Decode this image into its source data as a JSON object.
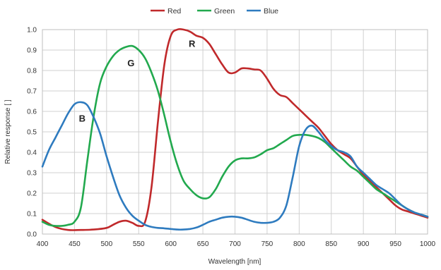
{
  "chart_data": {
    "type": "line",
    "xlabel": "Wavelength [nm]",
    "ylabel": "Relative response [ ]",
    "xlim": [
      400,
      1000
    ],
    "ylim": [
      0,
      1.0
    ],
    "x_ticks": [
      "400",
      "450",
      "500",
      "550",
      "600",
      "650",
      "700",
      "750",
      "800",
      "850",
      "900",
      "950",
      "1000"
    ],
    "y_ticks": [
      "0.0",
      "0.1",
      "0.2",
      "0.3",
      "0.4",
      "0.5",
      "0.6",
      "0.7",
      "0.8",
      "0.9",
      "1.0"
    ],
    "grid": true,
    "legend_position": "top",
    "series": [
      {
        "name": "Red",
        "color": "#c0292b",
        "x": [
          400,
          420,
          440,
          460,
          480,
          500,
          510,
          520,
          530,
          540,
          550,
          560,
          570,
          580,
          590,
          600,
          610,
          620,
          630,
          640,
          650,
          660,
          670,
          680,
          690,
          700,
          710,
          720,
          730,
          740,
          750,
          760,
          770,
          780,
          790,
          800,
          810,
          820,
          830,
          840,
          850,
          860,
          870,
          880,
          890,
          900,
          910,
          920,
          930,
          940,
          950,
          960,
          970,
          980,
          990,
          1000
        ],
        "y": [
          0.07,
          0.035,
          0.02,
          0.02,
          0.022,
          0.03,
          0.045,
          0.06,
          0.065,
          0.055,
          0.04,
          0.06,
          0.23,
          0.55,
          0.83,
          0.97,
          1.0,
          1.0,
          0.99,
          0.97,
          0.96,
          0.93,
          0.88,
          0.83,
          0.79,
          0.79,
          0.81,
          0.81,
          0.805,
          0.8,
          0.76,
          0.71,
          0.68,
          0.67,
          0.64,
          0.61,
          0.58,
          0.55,
          0.52,
          0.48,
          0.44,
          0.41,
          0.39,
          0.37,
          0.33,
          0.29,
          0.26,
          0.23,
          0.2,
          0.17,
          0.14,
          0.12,
          0.11,
          0.1,
          0.09,
          0.08
        ]
      },
      {
        "name": "Green",
        "color": "#22a94e",
        "x": [
          400,
          410,
          420,
          430,
          440,
          450,
          460,
          470,
          480,
          490,
          500,
          510,
          520,
          530,
          540,
          550,
          560,
          570,
          580,
          590,
          600,
          610,
          620,
          630,
          640,
          650,
          660,
          670,
          680,
          690,
          700,
          710,
          720,
          730,
          740,
          750,
          760,
          770,
          780,
          790,
          800,
          810,
          820,
          830,
          840,
          850,
          860,
          870,
          880,
          890,
          900,
          910,
          920,
          930,
          940,
          950,
          960,
          970,
          980,
          990,
          1000
        ],
        "y": [
          0.06,
          0.045,
          0.04,
          0.04,
          0.045,
          0.06,
          0.13,
          0.36,
          0.58,
          0.74,
          0.82,
          0.87,
          0.9,
          0.915,
          0.92,
          0.9,
          0.86,
          0.79,
          0.7,
          0.58,
          0.45,
          0.34,
          0.26,
          0.22,
          0.19,
          0.175,
          0.18,
          0.22,
          0.28,
          0.33,
          0.36,
          0.37,
          0.37,
          0.375,
          0.39,
          0.41,
          0.42,
          0.44,
          0.46,
          0.48,
          0.485,
          0.485,
          0.48,
          0.47,
          0.45,
          0.42,
          0.39,
          0.36,
          0.33,
          0.31,
          0.28,
          0.25,
          0.22,
          0.2,
          0.18,
          0.16,
          0.14,
          0.12,
          0.105,
          0.095,
          0.085
        ]
      },
      {
        "name": "Blue",
        "color": "#2e7bbf",
        "x": [
          400,
          410,
          420,
          430,
          440,
          450,
          460,
          470,
          480,
          490,
          500,
          510,
          520,
          530,
          540,
          550,
          560,
          570,
          580,
          590,
          600,
          610,
          620,
          630,
          640,
          650,
          660,
          670,
          680,
          690,
          700,
          710,
          720,
          730,
          740,
          750,
          760,
          770,
          780,
          790,
          800,
          810,
          820,
          830,
          840,
          850,
          860,
          870,
          880,
          890,
          900,
          910,
          920,
          930,
          940,
          950,
          960,
          970,
          980,
          990,
          1000
        ],
        "y": [
          0.33,
          0.41,
          0.47,
          0.53,
          0.59,
          0.635,
          0.645,
          0.63,
          0.57,
          0.49,
          0.38,
          0.28,
          0.19,
          0.13,
          0.09,
          0.065,
          0.045,
          0.035,
          0.03,
          0.028,
          0.025,
          0.022,
          0.022,
          0.025,
          0.032,
          0.045,
          0.06,
          0.07,
          0.08,
          0.085,
          0.085,
          0.08,
          0.07,
          0.06,
          0.055,
          0.055,
          0.06,
          0.08,
          0.14,
          0.28,
          0.43,
          0.51,
          0.53,
          0.5,
          0.46,
          0.43,
          0.41,
          0.4,
          0.38,
          0.33,
          0.3,
          0.27,
          0.24,
          0.22,
          0.2,
          0.17,
          0.14,
          0.12,
          0.105,
          0.095,
          0.085
        ]
      }
    ],
    "annotations": [
      {
        "text": "R",
        "x": 633,
        "y": 0.915
      },
      {
        "text": "G",
        "x": 538,
        "y": 0.82
      },
      {
        "text": "B",
        "x": 462,
        "y": 0.55
      }
    ]
  }
}
